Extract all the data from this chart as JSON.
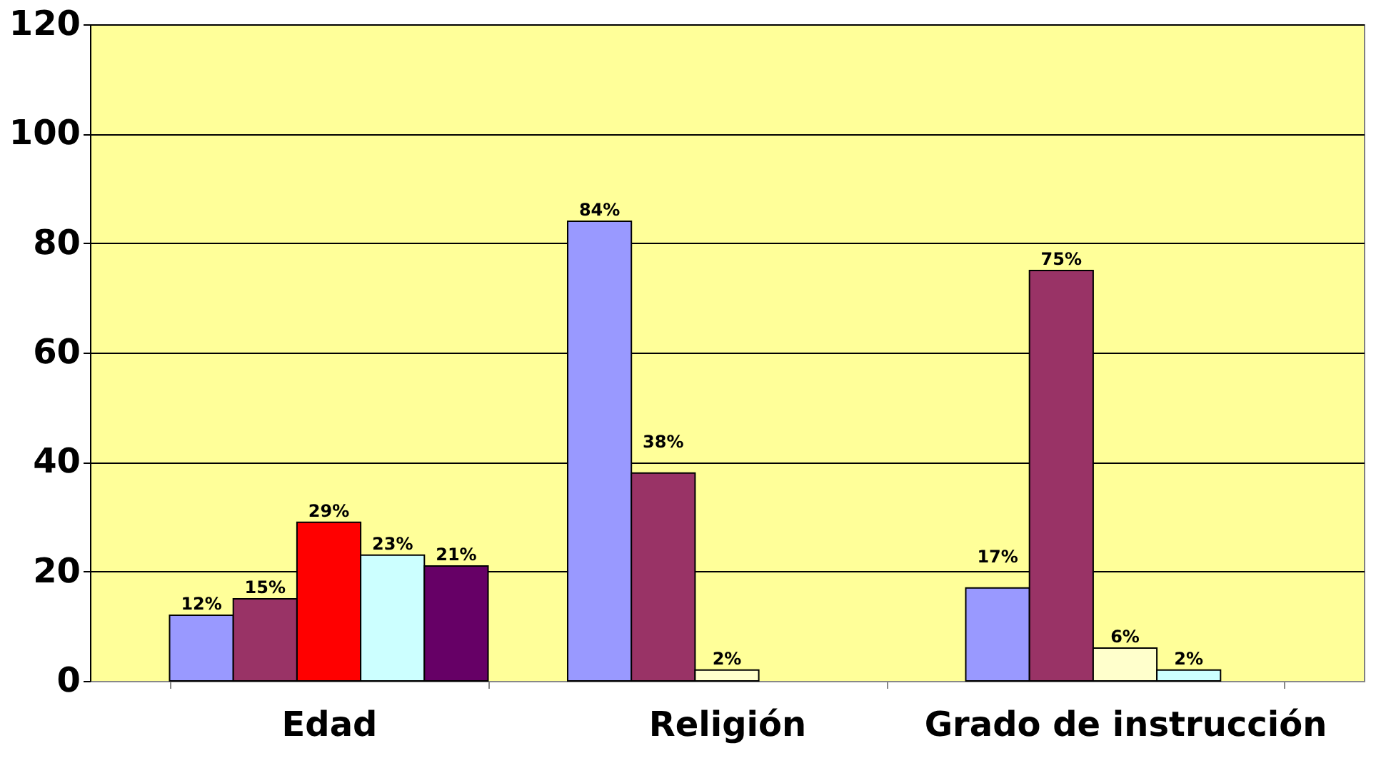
{
  "chart_data": {
    "type": "bar",
    "categories": [
      "Edad",
      "Religión",
      "Grado de instrucción"
    ],
    "series": [
      {
        "color": "#9999ff",
        "values": [
          12,
          84,
          17
        ],
        "value_labels": [
          "12%",
          "84%",
          "17%"
        ]
      },
      {
        "color": "#993366",
        "values": [
          15,
          38,
          75
        ],
        "value_labels": [
          "15%",
          "38%",
          "75%"
        ]
      },
      {
        "colors": [
          "#ff0000",
          "#ffffcc",
          "#ffffcc"
        ],
        "values": [
          29,
          2,
          6
        ],
        "value_labels": [
          "29%",
          "2%",
          "6%"
        ]
      },
      {
        "color": "#ccffff",
        "values": [
          23,
          null,
          2
        ],
        "value_labels": [
          "23%",
          null,
          "2%"
        ]
      },
      {
        "color": "#660066",
        "values": [
          21,
          null,
          null
        ],
        "value_labels": [
          "21%",
          null,
          null
        ]
      }
    ],
    "ylim": [
      0,
      120
    ],
    "yticks": [
      0,
      20,
      40,
      60,
      80,
      100,
      120
    ],
    "grid": "y"
  }
}
